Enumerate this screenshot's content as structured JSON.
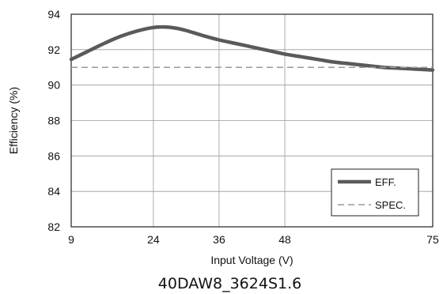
{
  "chart_data": {
    "type": "line",
    "title": "",
    "caption": "40DAW8_3624S1.6",
    "xlabel": "Input Voltage (V)",
    "ylabel": "Efficiency (%)",
    "xlim": [
      9,
      75
    ],
    "ylim": [
      82,
      94
    ],
    "x_ticks": [
      9,
      24,
      36,
      48,
      75
    ],
    "y_ticks": [
      82,
      84,
      86,
      88,
      90,
      92,
      94
    ],
    "grid": true,
    "legend_position": "bottom-right",
    "series": [
      {
        "name": "EFF.",
        "style": "solid",
        "color": "#5a5a5a",
        "x": [
          9,
          12,
          15,
          18,
          21,
          24,
          26,
          28,
          30,
          33,
          36,
          39,
          42,
          45,
          48,
          51,
          54,
          57,
          60,
          63,
          66,
          69,
          72,
          75
        ],
        "y": [
          91.45,
          91.9,
          92.35,
          92.75,
          93.05,
          93.25,
          93.28,
          93.22,
          93.08,
          92.8,
          92.55,
          92.35,
          92.15,
          91.95,
          91.75,
          91.6,
          91.45,
          91.3,
          91.2,
          91.1,
          91.0,
          90.95,
          90.9,
          90.85
        ]
      },
      {
        "name": "SPEC.",
        "style": "dashed",
        "color": "#9a9a9a",
        "x": [
          9,
          75
        ],
        "y": [
          91,
          91
        ]
      }
    ]
  }
}
